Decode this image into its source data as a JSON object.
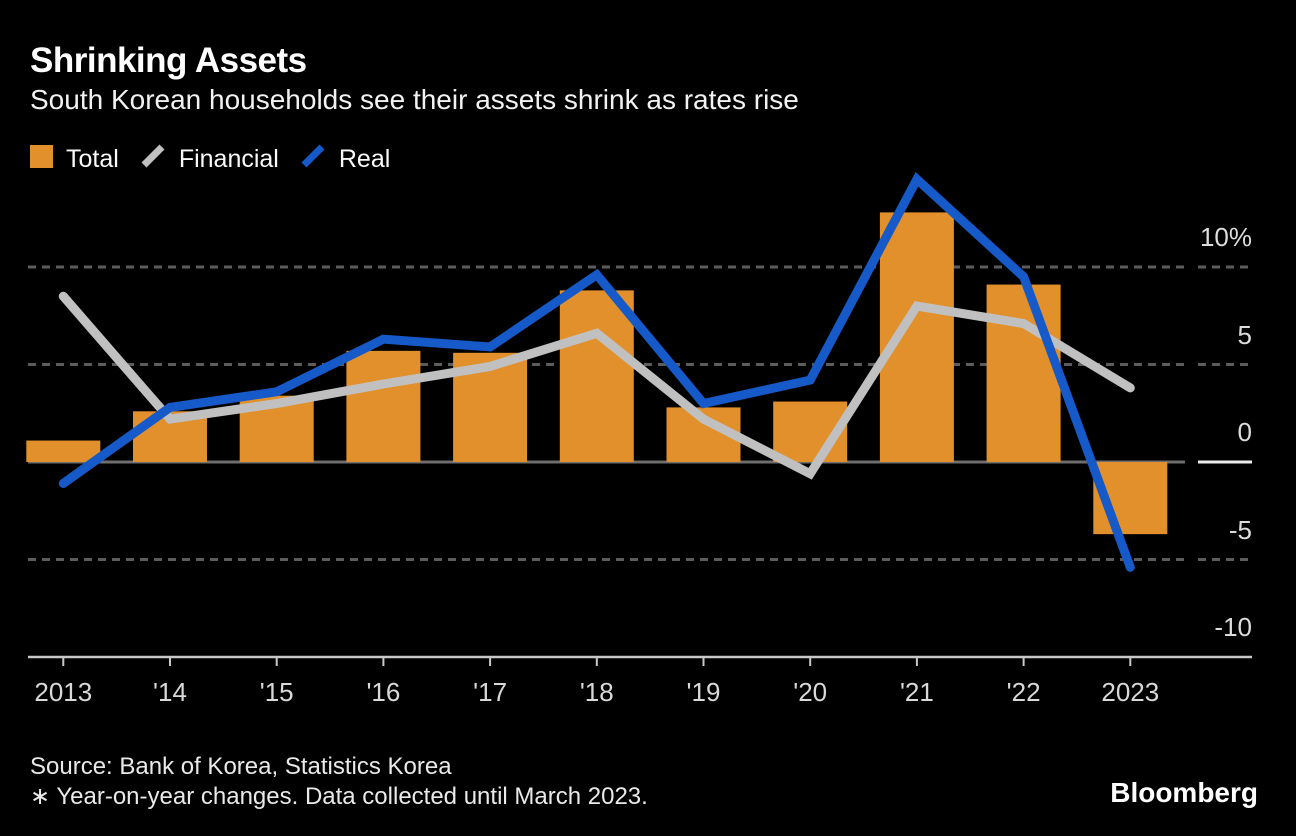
{
  "header": {
    "title": "Shrinking Assets",
    "subtitle": "South Korean households see their assets shrink as rates rise"
  },
  "legend": {
    "items": [
      {
        "label": "Total",
        "marker": "square",
        "color": "#E2902C"
      },
      {
        "label": "Financial",
        "marker": "slash",
        "color": "#C0C0C0"
      },
      {
        "label": "Real",
        "marker": "slash",
        "color": "#1659C8"
      }
    ]
  },
  "chart_data": {
    "type": "bar+line",
    "title": "Shrinking Assets",
    "subtitle": "South Korean households see their assets shrink as rates rise",
    "categories": [
      "2013",
      "'14",
      "'15",
      "'16",
      "'17",
      "'18",
      "'19",
      "'20",
      "'21",
      "'22",
      "2023"
    ],
    "series": [
      {
        "name": "Total",
        "type": "bar",
        "color": "#E2902C",
        "values": [
          1.1,
          2.6,
          3.4,
          5.7,
          5.6,
          8.8,
          2.8,
          3.1,
          12.8,
          9.1,
          -3.7
        ]
      },
      {
        "name": "Financial",
        "type": "line",
        "color": "#C0C0C0",
        "values": [
          8.5,
          2.2,
          3.0,
          4.0,
          4.9,
          6.6,
          2.2,
          -0.6,
          8.0,
          7.1,
          3.8
        ]
      },
      {
        "name": "Real",
        "type": "line",
        "color": "#1659C8",
        "values": [
          -1.1,
          2.8,
          3.6,
          6.3,
          5.9,
          9.6,
          3.0,
          4.2,
          14.5,
          9.5,
          -5.4
        ]
      }
    ],
    "unit": "%",
    "ylim": [
      -10,
      15
    ],
    "y_ticks": [
      {
        "label": "10%",
        "value": 10
      },
      {
        "label": "5",
        "value": 5
      },
      {
        "label": "0",
        "value": 0
      },
      {
        "label": "-5",
        "value": -5
      },
      {
        "label": "-10",
        "value": -10
      }
    ],
    "gridlines_dotted_at": [
      10,
      5,
      -5
    ],
    "zero_line_at": 0,
    "legend_position": "top-left",
    "colors": {
      "background": "#000000",
      "grid_dotted": "#5C5C5C",
      "zero_line": "#6E6E6E",
      "zero_line_right_tick": "#ECECEC",
      "axis_line": "#C8C8C8",
      "tick_label": "#D9D9D9"
    }
  },
  "footer": {
    "source": "Source: Bank of Korea, Statistics Korea",
    "note": "∗ Year-on-year changes. Data collected until March 2023.",
    "logo": "Bloomberg"
  }
}
